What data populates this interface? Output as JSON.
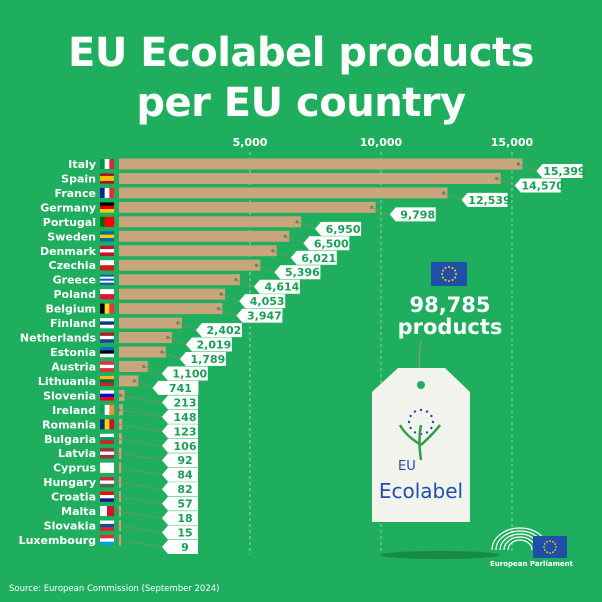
{
  "title_line1": "EU Ecolabel products",
  "title_line2": "per EU country",
  "total_value": "98,785",
  "total_label": "products",
  "source": "Source: European Commission (September 2024)",
  "publisher": "European Parliament",
  "ecolabel_logo_text": [
    "EU",
    "Ecolabel"
  ],
  "colors": {
    "background": "#1fae5e",
    "bar": "#c9a57c",
    "tag": "#ffffff",
    "tag_text": "#1a9e55",
    "eu_blue": "#1f4fa8",
    "eu_star": "#ffd200"
  },
  "chart_data": {
    "type": "bar",
    "orientation": "horizontal",
    "xlim": [
      0,
      16000
    ],
    "xticks": [
      5000,
      10000,
      15000
    ],
    "xtick_labels": [
      "5,000",
      "10,000",
      "15,000"
    ],
    "grid": "vertical dashed",
    "categories": [
      "Italy",
      "Spain",
      "France",
      "Germany",
      "Portugal",
      "Sweden",
      "Denmark",
      "Czechia",
      "Greece",
      "Poland",
      "Belgium",
      "Finland",
      "Netherlands",
      "Estonia",
      "Austria",
      "Lithuania",
      "Slovenia",
      "Ireland",
      "Romania",
      "Bulgaria",
      "Latvia",
      "Cyprus",
      "Hungary",
      "Croatia",
      "Malta",
      "Slovakia",
      "Luxembourg"
    ],
    "values": [
      15399,
      14570,
      12539,
      9798,
      6950,
      6500,
      6021,
      5396,
      4614,
      4053,
      3947,
      2402,
      2019,
      1789,
      1100,
      741,
      213,
      148,
      123,
      106,
      92,
      84,
      82,
      57,
      18,
      15,
      9
    ],
    "value_labels": [
      "15,399",
      "14,570",
      "12,539",
      "9,798",
      "6,950",
      "6,500",
      "6,021",
      "5,396",
      "4,614",
      "4,053",
      "3,947",
      "2,402",
      "2,019",
      "1,789",
      "1,100",
      "741",
      "213",
      "148",
      "123",
      "106",
      "92",
      "84",
      "82",
      "57",
      "18",
      "15",
      "9"
    ],
    "flags": [
      [
        "v",
        "#009246",
        "#ffffff",
        "#ce2b37"
      ],
      [
        "h",
        "#aa151b",
        "#f1bf00",
        "#f1bf00",
        "#aa151b"
      ],
      [
        "v",
        "#002395",
        "#ffffff",
        "#ed2939"
      ],
      [
        "h",
        "#000000",
        "#dd0000",
        "#ffce00"
      ],
      [
        "v",
        "#006600",
        "#ff0000",
        "#ff0000"
      ],
      [
        "h",
        "#006aa7",
        "#fecc00",
        "#006aa7"
      ],
      [
        "h",
        "#c8102e",
        "#ffffff",
        "#c8102e"
      ],
      [
        "h",
        "#ffffff",
        "#d7141a"
      ],
      [
        "h",
        "#0d5eaf",
        "#ffffff",
        "#0d5eaf",
        "#ffffff",
        "#0d5eaf"
      ],
      [
        "h",
        "#ffffff",
        "#dc143c"
      ],
      [
        "v",
        "#000000",
        "#fdda24",
        "#ef3340"
      ],
      [
        "h",
        "#ffffff",
        "#003580",
        "#ffffff"
      ],
      [
        "h",
        "#ae1c28",
        "#ffffff",
        "#21468b"
      ],
      [
        "h",
        "#0072ce",
        "#000000",
        "#ffffff"
      ],
      [
        "h",
        "#ed2939",
        "#ffffff",
        "#ed2939"
      ],
      [
        "h",
        "#fdb913",
        "#006a44",
        "#c1272d"
      ],
      [
        "h",
        "#ffffff",
        "#0000ff",
        "#ff0000"
      ],
      [
        "v",
        "#169b62",
        "#ffffff",
        "#ff883e"
      ],
      [
        "v",
        "#002b7f",
        "#fcd116",
        "#ce1126"
      ],
      [
        "h",
        "#ffffff",
        "#00966e",
        "#d62612"
      ],
      [
        "h",
        "#9e3039",
        "#ffffff",
        "#9e3039"
      ],
      [
        "h",
        "#ffffff",
        "#ffffff",
        "#ffffff"
      ],
      [
        "h",
        "#ce2939",
        "#ffffff",
        "#477050"
      ],
      [
        "h",
        "#ff0000",
        "#ffffff",
        "#171796"
      ],
      [
        "v",
        "#ffffff",
        "#cf142b"
      ],
      [
        "h",
        "#ffffff",
        "#0b4ea2",
        "#ee1c25"
      ],
      [
        "h",
        "#ed2939",
        "#ffffff",
        "#00a1de"
      ]
    ]
  }
}
